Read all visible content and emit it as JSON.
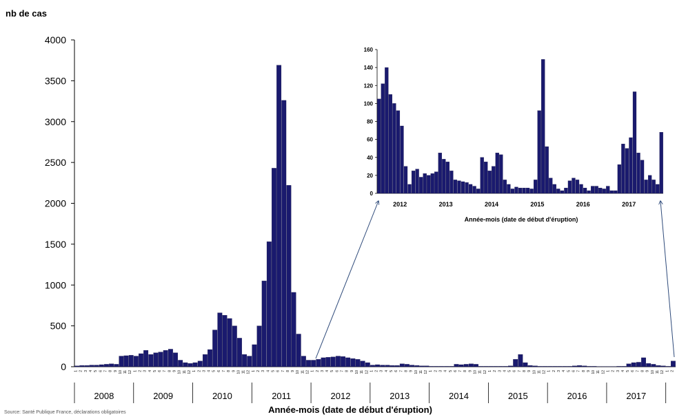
{
  "colors": {
    "bar": "#1a1a6e",
    "bar_edge": "#0d0d40",
    "axis": "#000000",
    "text": "#000000",
    "background": "#ffffff"
  },
  "chart_data": [
    {
      "type": "bar",
      "ylabel": "nb de cas",
      "xlabel": "Année-mois (date de début d'éruption)",
      "ylim": [
        0,
        4000
      ],
      "yticks": [
        0,
        500,
        1000,
        1500,
        2000,
        2500,
        3000,
        3500,
        4000
      ],
      "grid": false,
      "legend": "none",
      "start": "2008-01",
      "month_tick_labels": [
        "1",
        "2",
        "3",
        "4",
        "5",
        "6",
        "7",
        "8",
        "9",
        "10",
        "11",
        "12"
      ],
      "years": [
        "2008",
        "2009",
        "2010",
        "2011",
        "2012",
        "2013",
        "2014",
        "2015",
        "2016",
        "2017"
      ],
      "values": [
        10,
        15,
        15,
        20,
        20,
        25,
        30,
        35,
        30,
        130,
        135,
        140,
        130,
        160,
        200,
        150,
        170,
        180,
        200,
        215,
        170,
        80,
        50,
        40,
        50,
        70,
        150,
        210,
        450,
        660,
        630,
        590,
        500,
        350,
        150,
        130,
        270,
        500,
        1050,
        1530,
        2430,
        3690,
        3260,
        2220,
        910,
        400,
        130,
        80,
        80,
        90,
        110,
        115,
        120,
        130,
        125,
        110,
        100,
        90,
        70,
        50,
        20,
        25,
        20,
        20,
        15,
        15,
        35,
        30,
        20,
        15,
        10,
        10,
        5,
        5,
        5,
        5,
        5,
        30,
        25,
        30,
        35,
        30,
        5,
        5,
        5,
        5,
        5,
        5,
        10,
        90,
        150,
        50,
        15,
        10,
        5,
        5,
        5,
        5,
        5,
        5,
        5,
        10,
        15,
        10,
        5,
        5,
        3,
        3,
        3,
        3,
        5,
        5,
        35,
        50,
        55,
        110,
        40,
        30,
        15,
        10,
        5,
        70
      ],
      "footnote": "Source: Santé Publique France, déclarations obligatoires"
    },
    {
      "type": "bar",
      "ylabel": "",
      "xlabel": "Année-mois (date de début d'éruption)",
      "ylim": [
        0,
        160
      ],
      "yticks": [
        0,
        20,
        40,
        60,
        80,
        100,
        120,
        140,
        160
      ],
      "grid": false,
      "legend": "none",
      "start": "2011-10",
      "years": [
        "2012",
        "2013",
        "2014",
        "2015",
        "2016",
        "2017"
      ],
      "values": [
        105,
        122,
        140,
        110,
        100,
        92,
        75,
        30,
        10,
        25,
        27,
        18,
        22,
        20,
        22,
        24,
        45,
        38,
        35,
        25,
        15,
        14,
        13,
        12,
        10,
        8,
        5,
        40,
        35,
        25,
        30,
        45,
        43,
        15,
        10,
        5,
        7,
        6,
        6,
        6,
        5,
        15,
        92,
        149,
        52,
        17,
        10,
        5,
        3,
        6,
        14,
        17,
        15,
        10,
        6,
        3,
        8,
        8,
        6,
        5,
        8,
        3,
        3,
        32,
        55,
        50,
        62,
        113,
        45,
        37,
        15,
        20,
        15,
        10,
        68
      ]
    }
  ]
}
